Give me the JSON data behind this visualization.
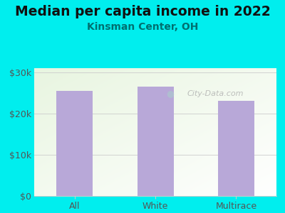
{
  "title": "Median per capita income in 2022",
  "subtitle": "Kinsman Center, OH",
  "categories": [
    "All",
    "White",
    "Multirace"
  ],
  "values": [
    25500,
    26500,
    23000
  ],
  "bar_color": "#b8a8d8",
  "background_color": "#00EEEE",
  "plot_bg_color_topleft": "#e8f5e0",
  "plot_bg_color_white": "#ffffff",
  "title_color": "#111111",
  "subtitle_color": "#007070",
  "tick_color": "#555555",
  "grid_color": "#cccccc",
  "ylim": [
    0,
    31000
  ],
  "yticks": [
    0,
    10000,
    20000,
    30000
  ],
  "ytick_labels": [
    "$0",
    "$10k",
    "$20k",
    "$30k"
  ],
  "title_fontsize": 13.5,
  "subtitle_fontsize": 10,
  "tick_fontsize": 9,
  "watermark_text": "City-Data.com",
  "watermark_color": "#aaaaaa",
  "bar_width": 0.45
}
